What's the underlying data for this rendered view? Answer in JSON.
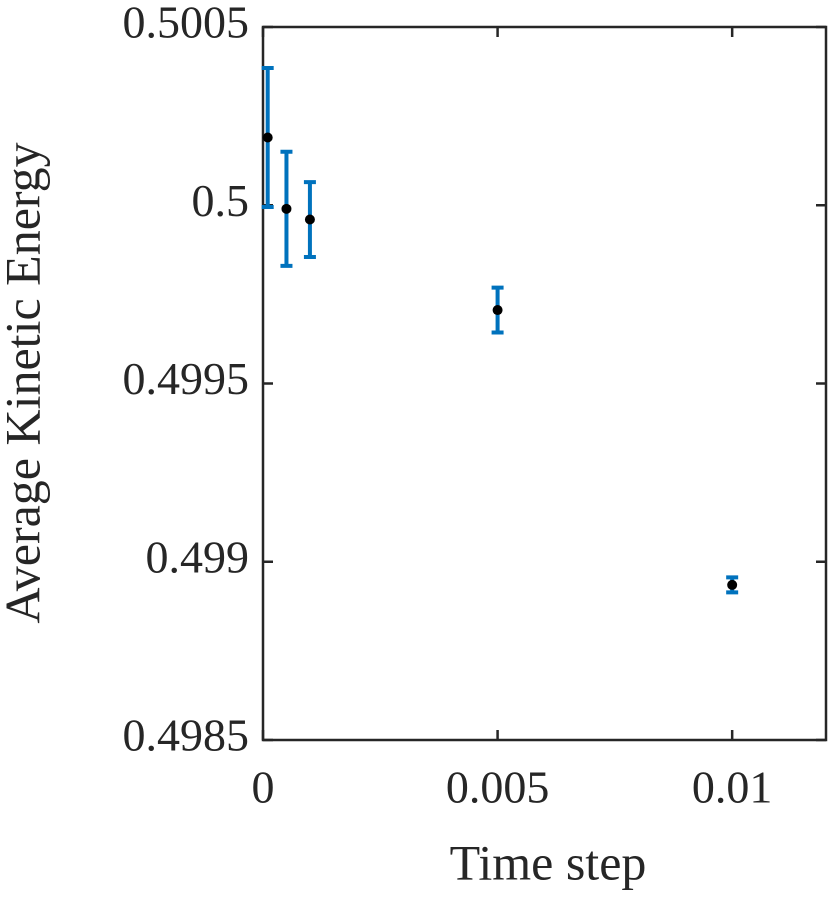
{
  "chart_data": {
    "type": "errorbar",
    "xlabel": "Time step",
    "ylabel": "Average Kinetic Energy",
    "x": [
      0.0001,
      0.0005,
      0.001,
      0.005,
      0.01
    ],
    "series": [
      {
        "values": [
          0.50019,
          0.49999,
          0.49996,
          0.499706,
          0.498935
        ],
        "errors": [
          0.000195,
          0.00016,
          0.000105,
          6.3e-05,
          2.1e-05
        ],
        "color": "#0072bd",
        "marker_color": "#000000"
      }
    ],
    "xlim": [
      0,
      0.012
    ],
    "ylim": [
      0.4985,
      0.5005
    ],
    "xticks": [
      0,
      0.005,
      0.01
    ],
    "yticks": [
      0.4985,
      0.499,
      0.4995,
      0.5,
      0.5005
    ]
  }
}
